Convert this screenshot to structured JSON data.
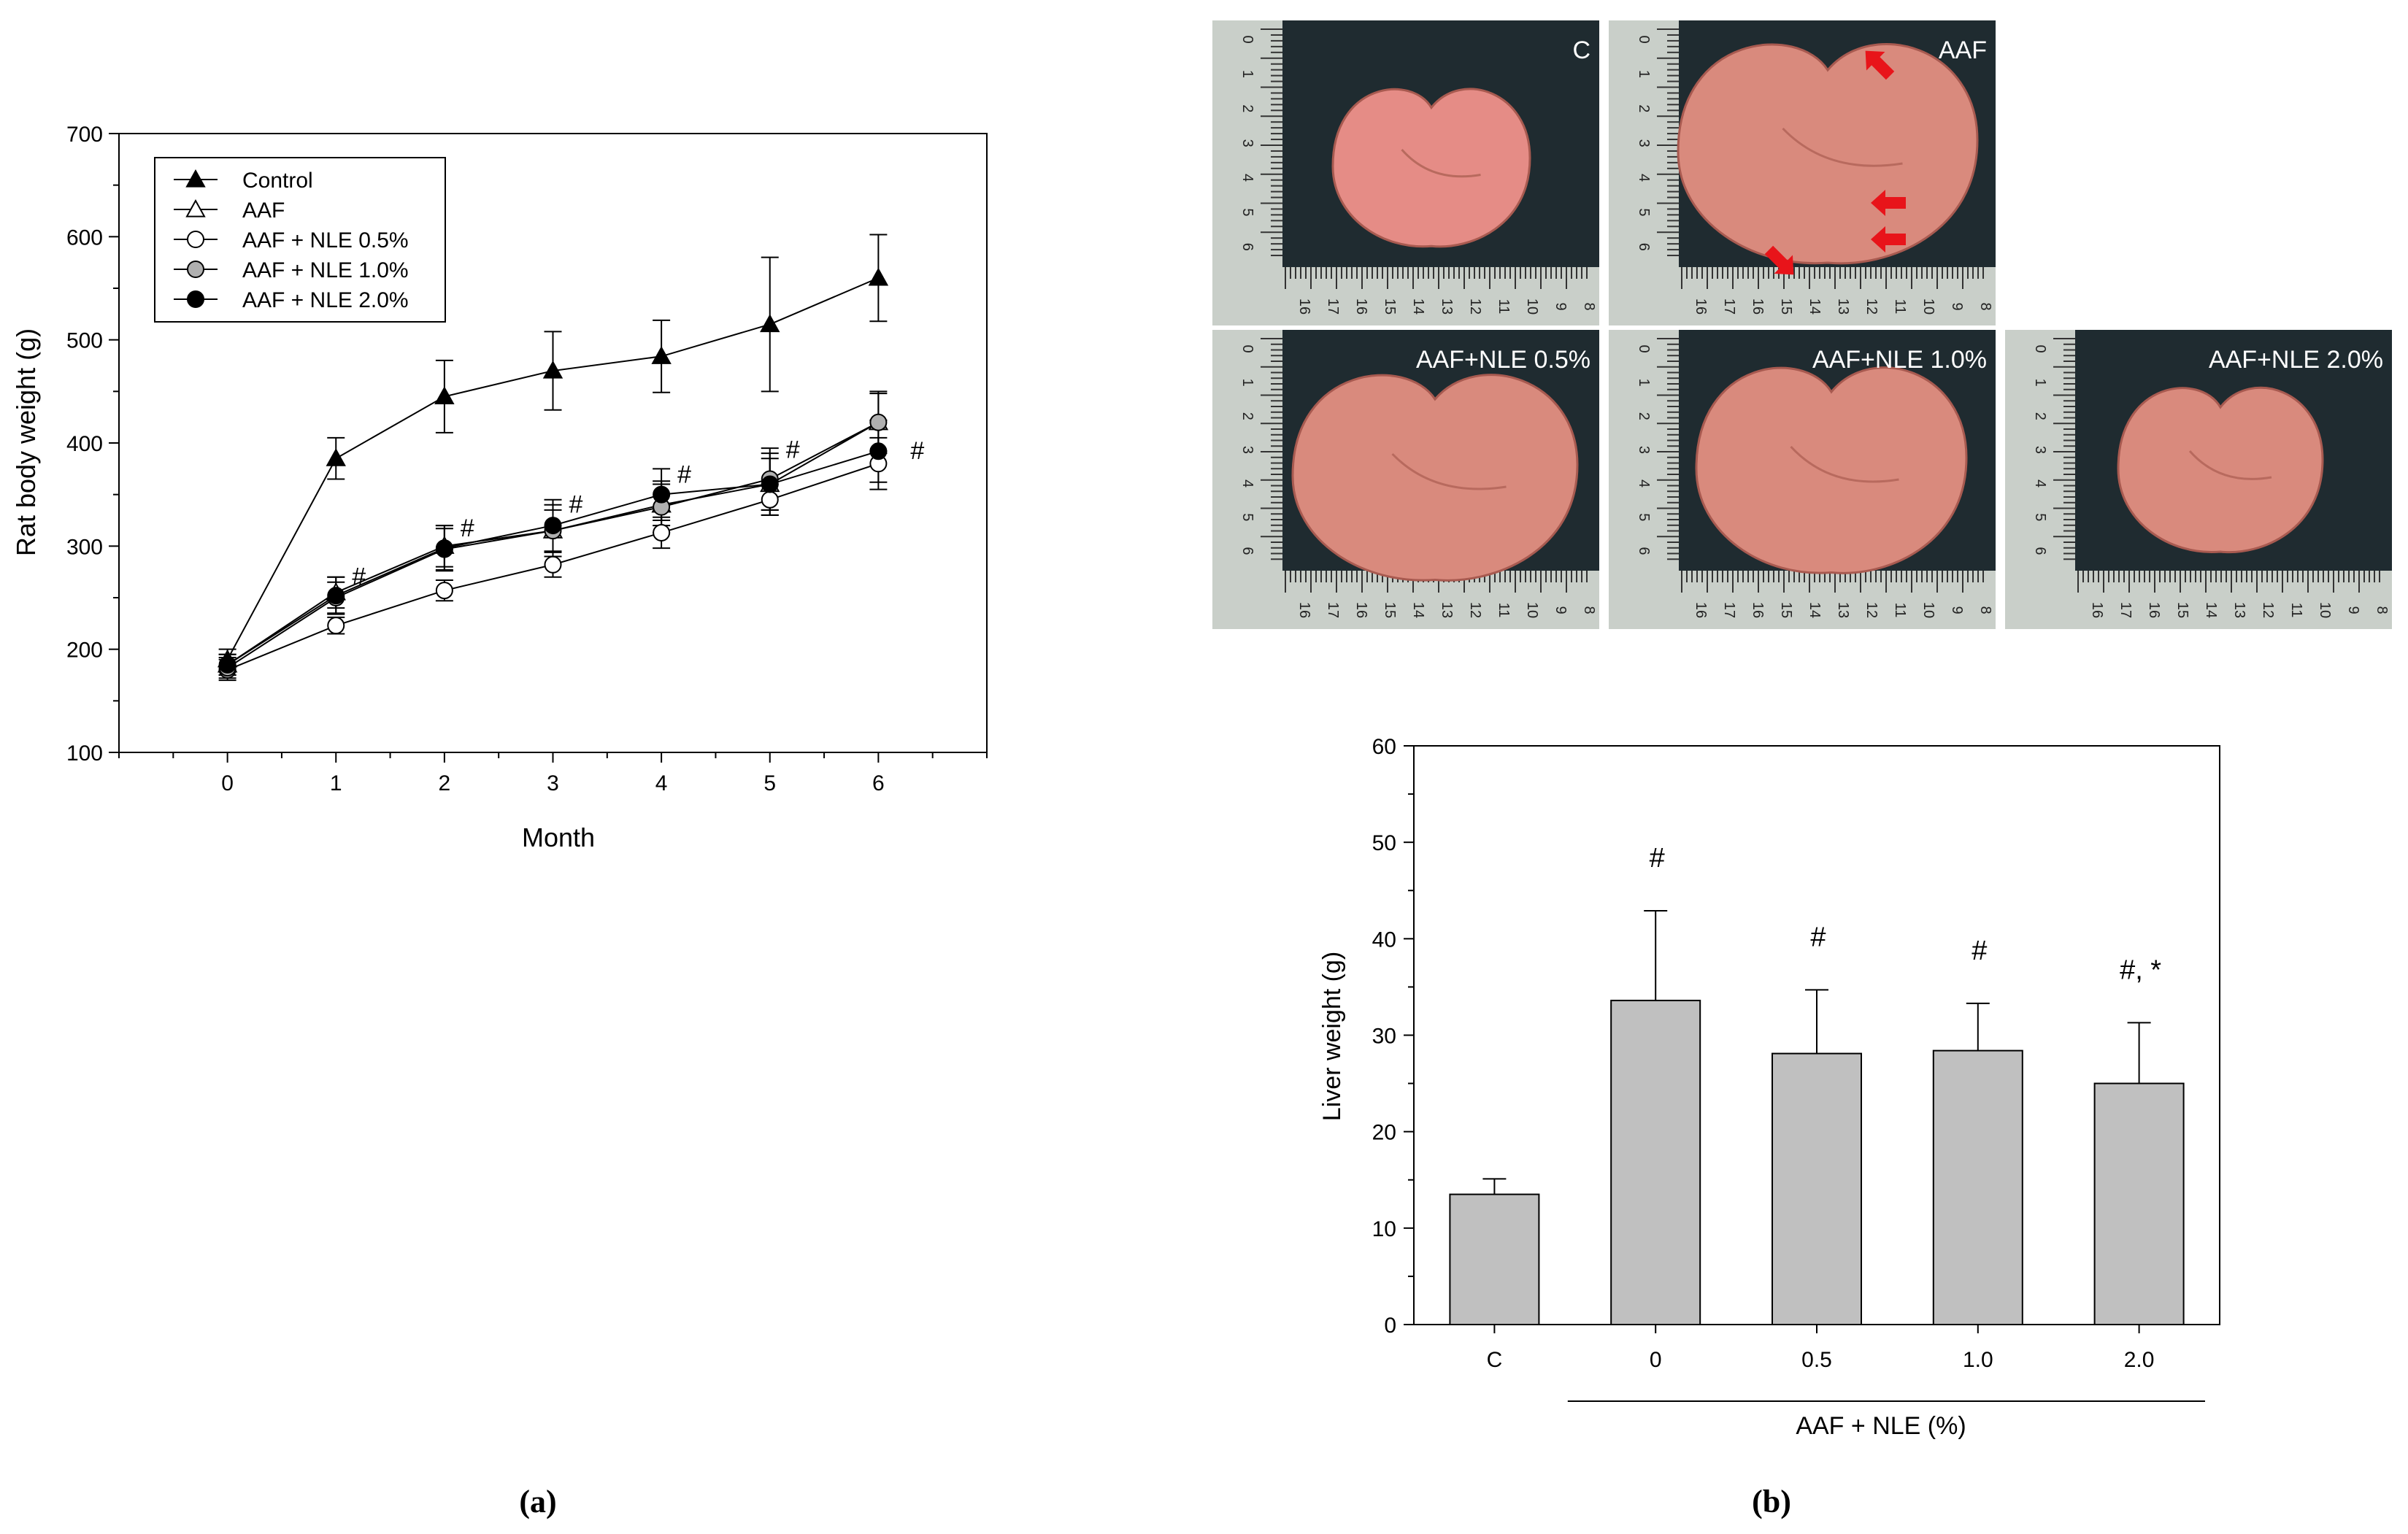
{
  "chart_data": [
    {
      "type": "line",
      "panel_label": "(a)",
      "title": "",
      "xlabel": "Month",
      "ylabel": "Rat  body weight (g)",
      "xlim": [
        -1,
        7
      ],
      "ylim": [
        100,
        700
      ],
      "x": [
        0,
        1,
        2,
        3,
        4,
        5,
        6
      ],
      "x_ticks": [
        "0",
        "1",
        "2",
        "3",
        "4",
        "5",
        "6"
      ],
      "y_ticks": [
        "100",
        "200",
        "300",
        "400",
        "500",
        "600",
        "700"
      ],
      "grid": false,
      "legend_position": "top-left",
      "series": [
        {
          "name": "Control",
          "marker": "filled-triangle",
          "values": [
            190,
            385,
            445,
            470,
            484,
            515,
            560
          ],
          "errors": [
            10,
            20,
            35,
            38,
            35,
            65,
            42
          ]
        },
        {
          "name": "AAF",
          "marker": "open-triangle",
          "values": [
            185,
            255,
            300,
            315,
            340,
            360,
            420
          ],
          "errors": [
            10,
            15,
            20,
            20,
            20,
            25,
            28
          ]
        },
        {
          "name": "AAF + NLE 0.5%",
          "marker": "open-circle",
          "values": [
            180,
            223,
            257,
            282,
            313,
            345,
            380
          ],
          "errors": [
            10,
            8,
            10,
            12,
            15,
            15,
            25
          ]
        },
        {
          "name": "AAF + NLE 1.0%",
          "marker": "gray-circle",
          "values": [
            182,
            250,
            297,
            315,
            338,
            365,
            420
          ],
          "errors": [
            10,
            15,
            20,
            25,
            25,
            30,
            30
          ]
        },
        {
          "name": "AAF + NLE 2.0%",
          "marker": "filled-circle",
          "values": [
            185,
            252,
            298,
            320,
            350,
            360,
            392
          ],
          "errors": [
            10,
            18,
            22,
            25,
            25,
            30,
            30
          ]
        }
      ],
      "annotations": [
        {
          "text": "#",
          "x": 1,
          "y": 268
        },
        {
          "text": "#",
          "x": 2,
          "y": 315
        },
        {
          "text": "#",
          "x": 3,
          "y": 338
        },
        {
          "text": "#",
          "x": 4,
          "y": 367
        },
        {
          "text": "#",
          "x": 5,
          "y": 391
        },
        {
          "text": "#",
          "x": 6,
          "y": 390
        }
      ]
    },
    {
      "type": "bar",
      "panel_label": "(b)",
      "title": "",
      "xlabel": "AAF + NLE (%)",
      "ylabel": "Liver weight (g)",
      "ylim": [
        0,
        60
      ],
      "y_ticks": [
        "0",
        "10",
        "20",
        "30",
        "40",
        "50",
        "60"
      ],
      "grid": false,
      "categories": [
        "C",
        "0",
        "0.5",
        "1.0",
        "2.0"
      ],
      "values": [
        13.5,
        33.6,
        28.1,
        28.4,
        25.0
      ],
      "errors": [
        1.6,
        9.3,
        6.6,
        4.9,
        6.3
      ],
      "bar_color": "#c0c0c0",
      "annotations": [
        "",
        "#",
        "#",
        "#",
        "#, *"
      ]
    }
  ],
  "photos": {
    "labels": [
      "C",
      "AAF",
      "AAF+NLE 0.5%",
      "AAF+NLE 1.0%",
      "AAF+NLE 2.0%"
    ],
    "ruler_numbers_bottom": [
      "16",
      "17",
      "16",
      "15",
      "14",
      "13",
      "12",
      "11",
      "10",
      "9",
      "8"
    ],
    "ruler_numbers_side": [
      "0",
      "1",
      "2",
      "3",
      "4",
      "5",
      "6"
    ]
  },
  "colors": {
    "photo_background": "#1f2b30",
    "liver": "#d98a7d",
    "arrow": "#e8141a",
    "bar": "#c0c0c0"
  }
}
